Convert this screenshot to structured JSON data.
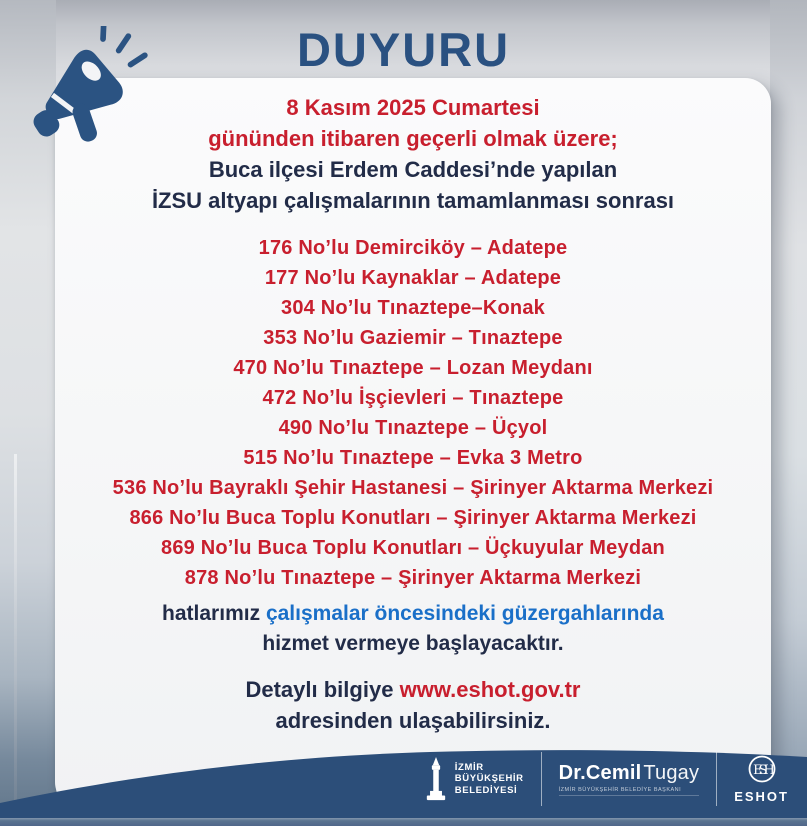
{
  "announcement": {
    "title": "DUYURU",
    "intro": {
      "line1": "8 Kasım 2025 Cumartesi",
      "line2": "gününden itibaren geçerli olmak üzere;",
      "line3": "Buca ilçesi Erdem Caddesi’nde yapılan",
      "line4": "İZSU altyapı çalışmalarının tamamlanması sonrası"
    },
    "bus_lines": [
      "176 No’lu Demirciköy – Adatepe",
      "177 No’lu Kaynaklar – Adatepe",
      "304 No’lu Tınaztepe–Konak",
      "353 No’lu Gaziemir – Tınaztepe",
      "470 No’lu Tınaztepe – Lozan Meydanı",
      "472 No’lu İşçievleri – Tınaztepe",
      "490 No’lu Tınaztepe – Üçyol",
      "515 No’lu Tınaztepe – Evka 3 Metro",
      "536 No’lu Bayraklı Şehir Hastanesi – Şirinyer Aktarma Merkezi",
      "866 No’lu Buca Toplu Konutları – Şirinyer Aktarma Merkezi",
      "869 No’lu Buca Toplu Konutları – Üçkuyular Meydan",
      "878 No’lu Tınaztepe – Şirinyer Aktarma Merkezi"
    ],
    "closing": {
      "prefix": "hatlarımız",
      "highlight": "çalışmalar öncesindeki güzergahlarında",
      "line2": "hizmet vermeye başlayacaktır."
    },
    "info": {
      "prefix": "Detaylı bilgiye",
      "url": "www.eshot.gov.tr",
      "suffix": "adresinden ulaşabilirsiniz."
    }
  },
  "footer": {
    "municipality": {
      "line1": "İZMİR",
      "line2": "BÜYÜKŞEHİR",
      "line3": "BELEDİYESİ"
    },
    "mayor": {
      "prefix": "Dr.",
      "first": "Cemil",
      "last": "Tugay",
      "subtitle": "İZMİR BÜYÜKŞEHİR BELEDİYE BAŞKANI"
    },
    "agency": "ESHOT"
  },
  "icons": {
    "top_left": "megaphone-icon",
    "municipality_logo": "izmir-clock-tower-icon",
    "agency_logo": "eshot-emblem-icon"
  },
  "colors": {
    "title_blue": "#2a5181",
    "accent_red": "#c81f2e",
    "navy_text": "#222c48",
    "link_blue": "#1a6fc8",
    "footer_navy": "#2c4e79",
    "bottom_strip": "#5a7390"
  }
}
